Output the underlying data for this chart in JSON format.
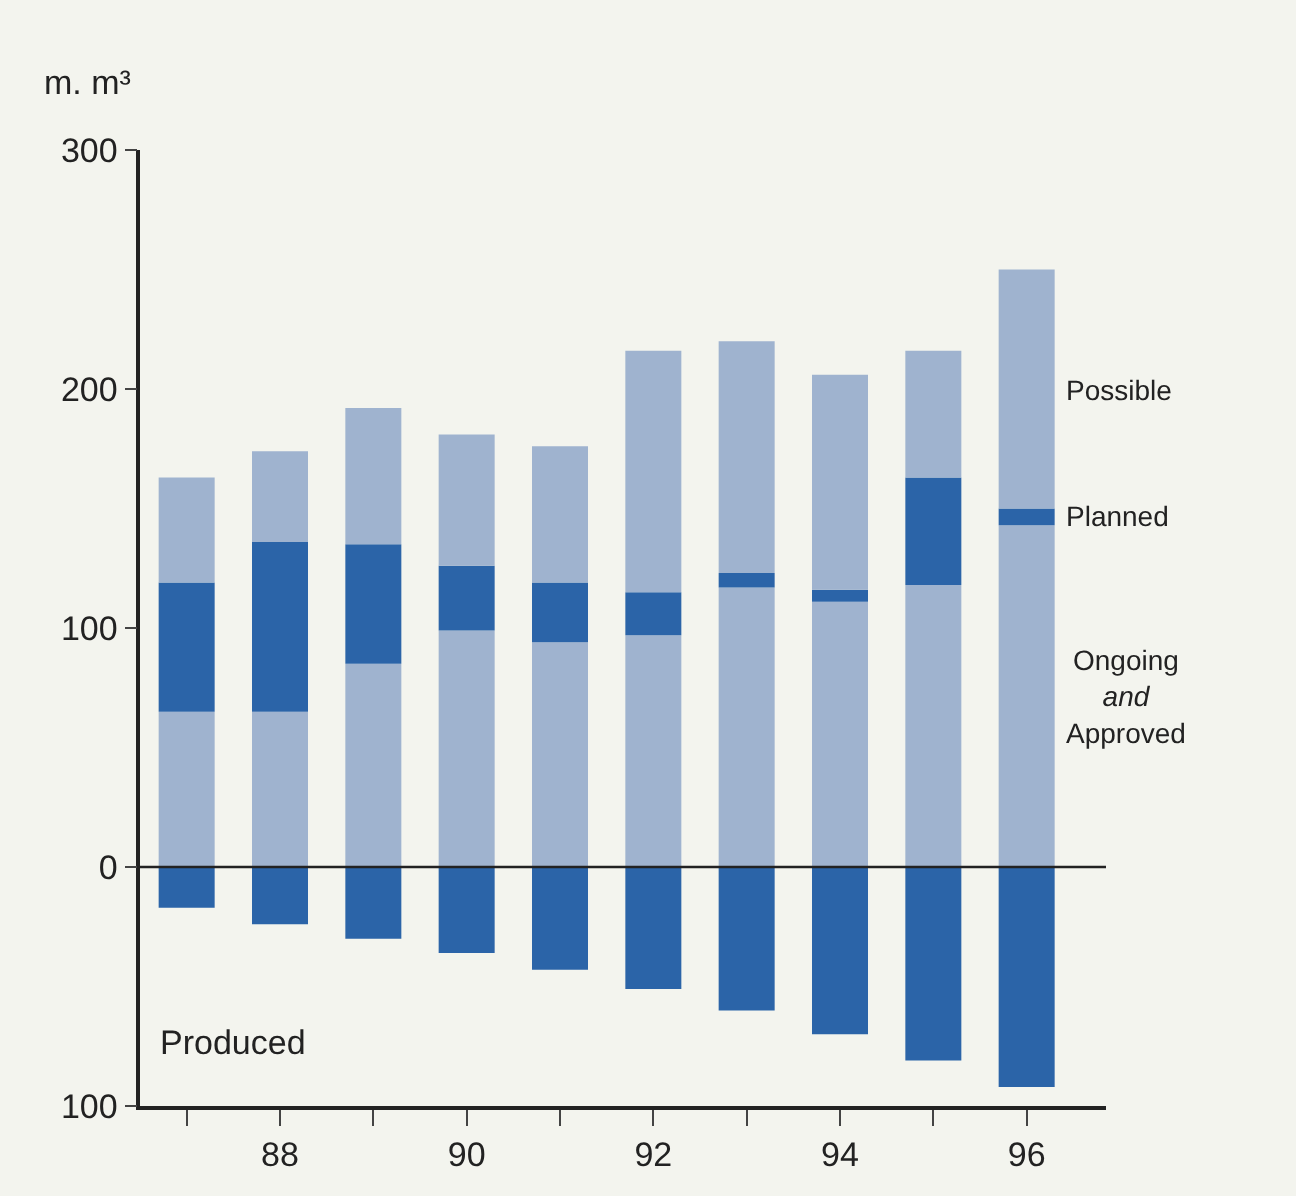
{
  "chart_data": {
    "type": "bar",
    "stacked": true,
    "ylabel": "m. m³",
    "categories": [
      null,
      "88",
      null,
      "90",
      null,
      "92",
      null,
      "94",
      null,
      "96"
    ],
    "series": [
      {
        "name": "Ongoing and Approved",
        "color": "#9fb3cf",
        "values": [
          65,
          65,
          85,
          99,
          94,
          97,
          117,
          111,
          118,
          143
        ]
      },
      {
        "name": "Planned",
        "color": "#2b64a8",
        "values": [
          54,
          71,
          50,
          27,
          25,
          18,
          6,
          5,
          45,
          7
        ]
      },
      {
        "name": "Possible",
        "color": "#9fb3cf",
        "values": [
          44,
          38,
          57,
          55,
          57,
          101,
          97,
          90,
          53,
          100
        ]
      },
      {
        "name": "Produced",
        "color": "#2b64a8",
        "values": [
          -17,
          -24,
          -30,
          -36,
          -43,
          -51,
          -60,
          -70,
          -81,
          -92
        ]
      }
    ],
    "ylim": [
      -100,
      300
    ],
    "yticks": [
      {
        "value": -100,
        "label": "100"
      },
      0,
      100,
      200,
      300
    ],
    "ref_lines": [
      {
        "axis": "y",
        "value": 0,
        "color": "#222222"
      }
    ],
    "grid": false,
    "legend": false
  }
}
